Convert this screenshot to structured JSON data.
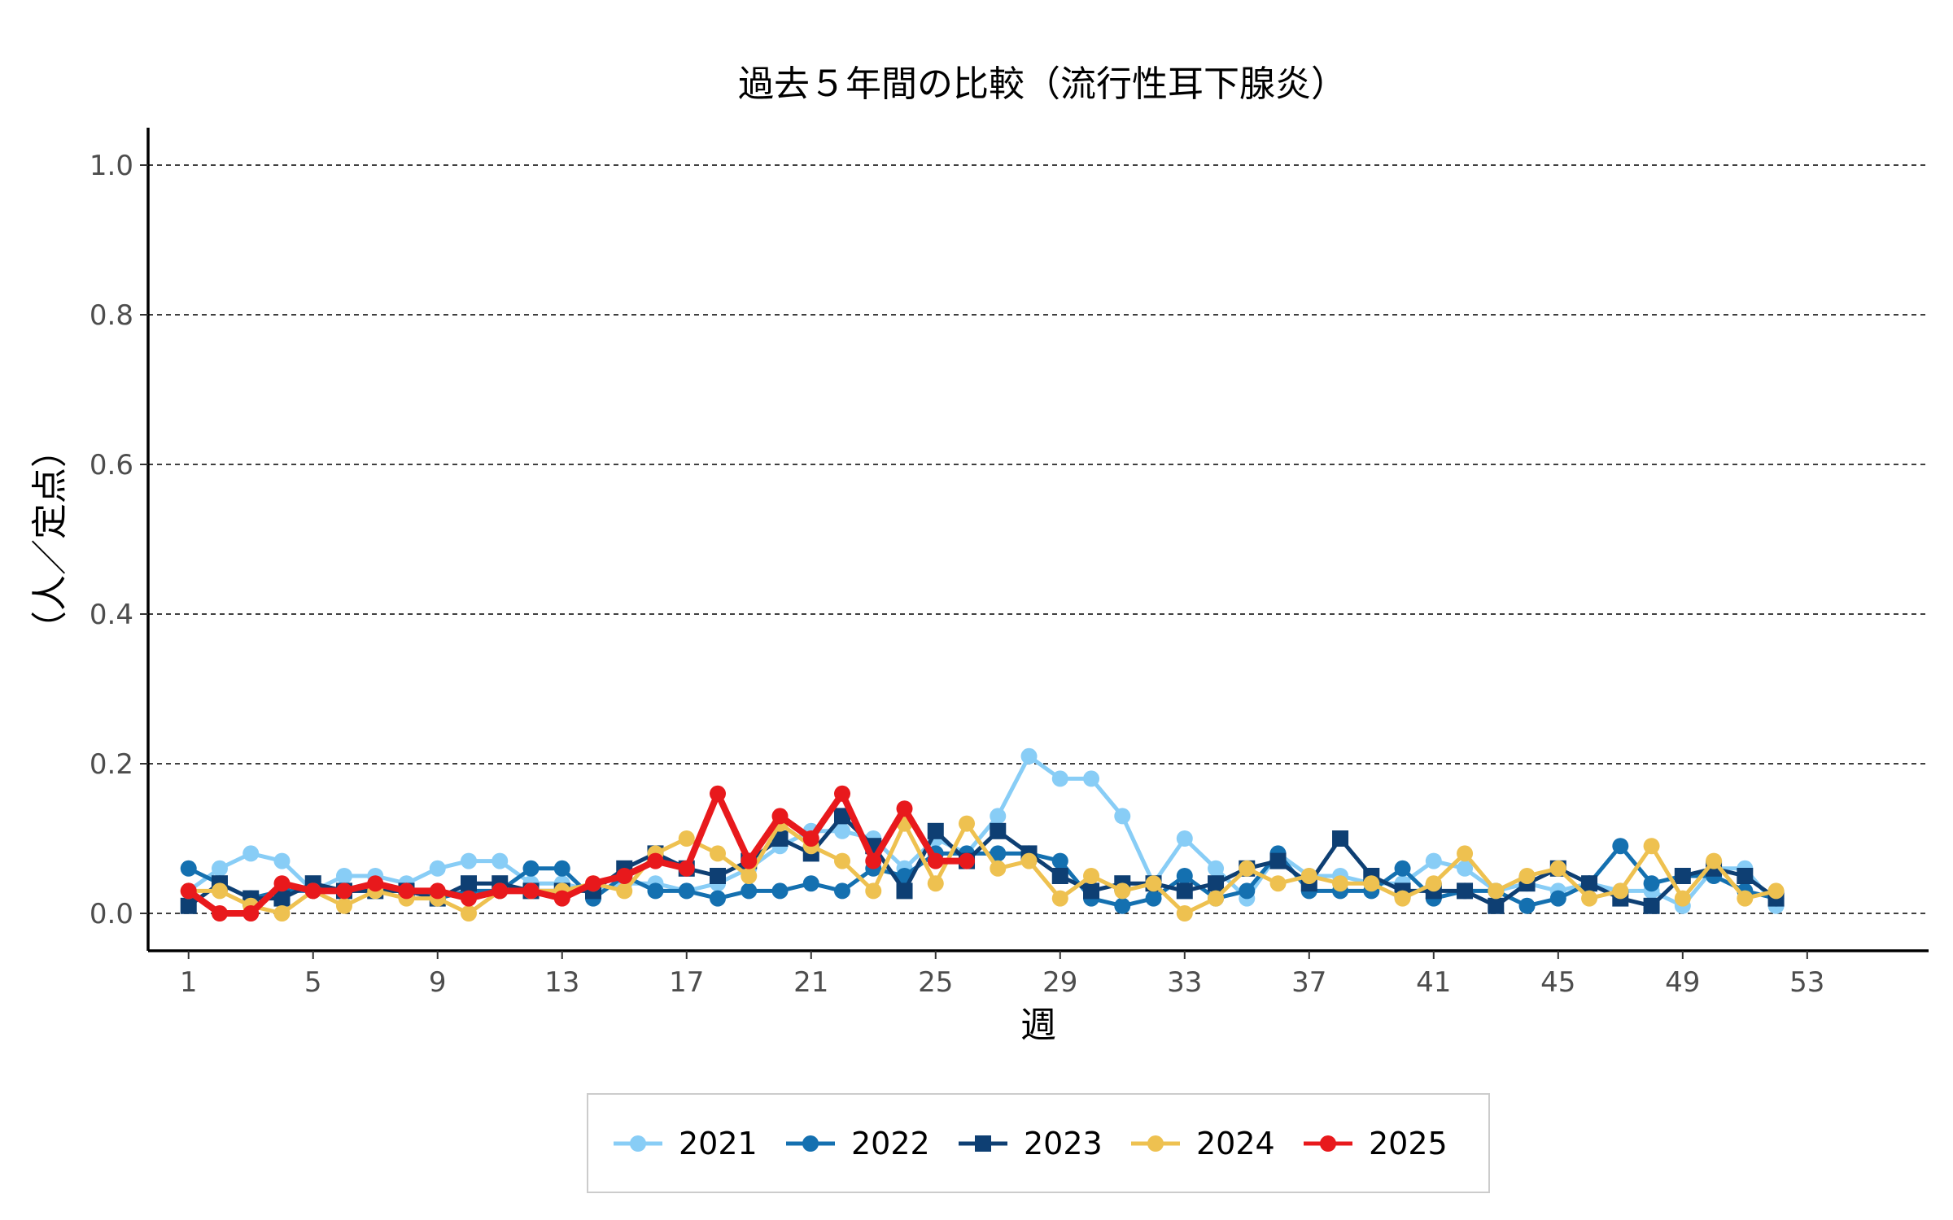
{
  "chart_data": {
    "type": "line",
    "title": "過去５年間の比較（流行性耳下腺炎）",
    "xlabel": "週",
    "ylabel": "（人／定点）",
    "xlim": [
      -0.3,
      56.9
    ],
    "ylim": [
      -0.05,
      1.05
    ],
    "x_ticks": [
      1,
      5,
      9,
      13,
      17,
      21,
      25,
      29,
      33,
      37,
      41,
      45,
      49,
      53
    ],
    "y_ticks": [
      0.0,
      0.2,
      0.4,
      0.6,
      0.8,
      1.0
    ],
    "y_tick_labels": [
      "0.0",
      "0.2",
      "0.4",
      "0.6",
      "0.8",
      "1.0"
    ],
    "grid": "horizontal dashed",
    "legend_position": "bottom",
    "series": [
      {
        "name": "2021",
        "color": "#88cdf6",
        "marker": "circle",
        "width": 5,
        "x": [
          1,
          2,
          3,
          4,
          5,
          6,
          7,
          8,
          9,
          10,
          11,
          12,
          13,
          14,
          15,
          16,
          17,
          18,
          19,
          20,
          21,
          22,
          23,
          24,
          25,
          26,
          27,
          28,
          29,
          30,
          31,
          32,
          33,
          34,
          35,
          36,
          37,
          38,
          39,
          40,
          41,
          42,
          43,
          44,
          45,
          46,
          47,
          48,
          49,
          50,
          51,
          52
        ],
        "values": [
          0.03,
          0.06,
          0.08,
          0.07,
          0.03,
          0.05,
          0.05,
          0.04,
          0.06,
          0.07,
          0.07,
          0.04,
          0.04,
          0.03,
          0.04,
          0.04,
          0.03,
          0.04,
          0.06,
          0.09,
          0.11,
          0.11,
          0.1,
          0.06,
          0.1,
          0.08,
          0.13,
          0.21,
          0.18,
          0.18,
          0.13,
          0.04,
          0.1,
          0.06,
          0.02,
          0.08,
          0.05,
          0.05,
          0.04,
          0.04,
          0.07,
          0.06,
          0.03,
          0.04,
          0.03,
          0.04,
          0.03,
          0.03,
          0.01,
          0.06,
          0.06,
          0.01
        ]
      },
      {
        "name": "2022",
        "color": "#1470b0",
        "marker": "circle",
        "width": 5,
        "x": [
          1,
          2,
          3,
          4,
          5,
          6,
          7,
          8,
          9,
          10,
          11,
          12,
          13,
          14,
          15,
          16,
          17,
          18,
          19,
          20,
          21,
          22,
          23,
          24,
          25,
          26,
          27,
          28,
          29,
          30,
          31,
          32,
          33,
          34,
          35,
          36,
          37,
          38,
          39,
          40,
          41,
          42,
          43,
          44,
          45,
          46,
          47,
          48,
          49,
          50,
          51,
          52
        ],
        "values": [
          0.06,
          0.04,
          0.02,
          0.03,
          0.03,
          0.03,
          0.03,
          0.03,
          0.02,
          0.03,
          0.03,
          0.06,
          0.06,
          0.02,
          0.05,
          0.03,
          0.03,
          0.02,
          0.03,
          0.03,
          0.04,
          0.03,
          0.06,
          0.05,
          0.08,
          0.08,
          0.08,
          0.08,
          0.07,
          0.02,
          0.01,
          0.02,
          0.05,
          0.02,
          0.03,
          0.08,
          0.03,
          0.03,
          0.03,
          0.06,
          0.02,
          0.03,
          0.03,
          0.01,
          0.02,
          0.04,
          0.09,
          0.04,
          0.05,
          0.05,
          0.03,
          0.02
        ]
      },
      {
        "name": "2023",
        "color": "#0e3f73",
        "marker": "square",
        "width": 5,
        "x": [
          1,
          2,
          3,
          4,
          5,
          6,
          7,
          8,
          9,
          10,
          11,
          12,
          13,
          14,
          15,
          16,
          17,
          18,
          19,
          20,
          21,
          22,
          23,
          24,
          25,
          26,
          27,
          28,
          29,
          30,
          31,
          32,
          33,
          34,
          35,
          36,
          37,
          38,
          39,
          40,
          41,
          42,
          43,
          44,
          45,
          46,
          47,
          48,
          49,
          50,
          51,
          52
        ],
        "values": [
          0.01,
          0.04,
          0.02,
          0.02,
          0.04,
          0.03,
          0.03,
          0.03,
          0.02,
          0.04,
          0.04,
          0.03,
          0.03,
          0.03,
          0.06,
          0.08,
          0.06,
          0.05,
          0.07,
          0.1,
          0.08,
          0.13,
          0.09,
          0.03,
          0.11,
          0.07,
          0.11,
          0.08,
          0.05,
          0.03,
          0.04,
          0.04,
          0.03,
          0.04,
          0.06,
          0.07,
          0.04,
          0.1,
          0.05,
          0.03,
          0.03,
          0.03,
          0.01,
          0.04,
          0.06,
          0.04,
          0.02,
          0.01,
          0.05,
          0.06,
          0.05,
          0.02
        ]
      },
      {
        "name": "2024",
        "color": "#eec150",
        "marker": "circle",
        "width": 5,
        "x": [
          1,
          2,
          3,
          4,
          5,
          6,
          7,
          8,
          9,
          10,
          11,
          12,
          13,
          14,
          15,
          16,
          17,
          18,
          19,
          20,
          21,
          22,
          23,
          24,
          25,
          26,
          27,
          28,
          29,
          30,
          31,
          32,
          33,
          34,
          35,
          36,
          37,
          38,
          39,
          40,
          41,
          42,
          43,
          44,
          45,
          46,
          47,
          48,
          49,
          50,
          51,
          52
        ],
        "values": [
          0.03,
          0.03,
          0.01,
          0.0,
          0.03,
          0.01,
          0.03,
          0.02,
          0.02,
          0.0,
          0.03,
          0.03,
          0.03,
          0.04,
          0.03,
          0.08,
          0.1,
          0.08,
          0.05,
          0.12,
          0.09,
          0.07,
          0.03,
          0.12,
          0.04,
          0.12,
          0.06,
          0.07,
          0.02,
          0.05,
          0.03,
          0.04,
          0.0,
          0.02,
          0.06,
          0.04,
          0.05,
          0.04,
          0.04,
          0.02,
          0.04,
          0.08,
          0.03,
          0.05,
          0.06,
          0.02,
          0.03,
          0.09,
          0.02,
          0.07,
          0.02,
          0.03
        ]
      },
      {
        "name": "2025",
        "color": "#e8191c",
        "marker": "circle",
        "width": 8,
        "x": [
          1,
          2,
          3,
          4,
          5,
          6,
          7,
          8,
          9,
          10,
          11,
          12,
          13,
          14,
          15,
          16,
          17,
          18,
          19,
          20,
          21,
          22,
          23,
          24,
          25,
          26
        ],
        "values": [
          0.03,
          0.0,
          0.0,
          0.04,
          0.03,
          0.03,
          0.04,
          0.03,
          0.03,
          0.02,
          0.03,
          0.03,
          0.02,
          0.04,
          0.05,
          0.07,
          0.06,
          0.16,
          0.07,
          0.13,
          0.1,
          0.16,
          0.07,
          0.14,
          0.07,
          0.07
        ]
      }
    ]
  }
}
